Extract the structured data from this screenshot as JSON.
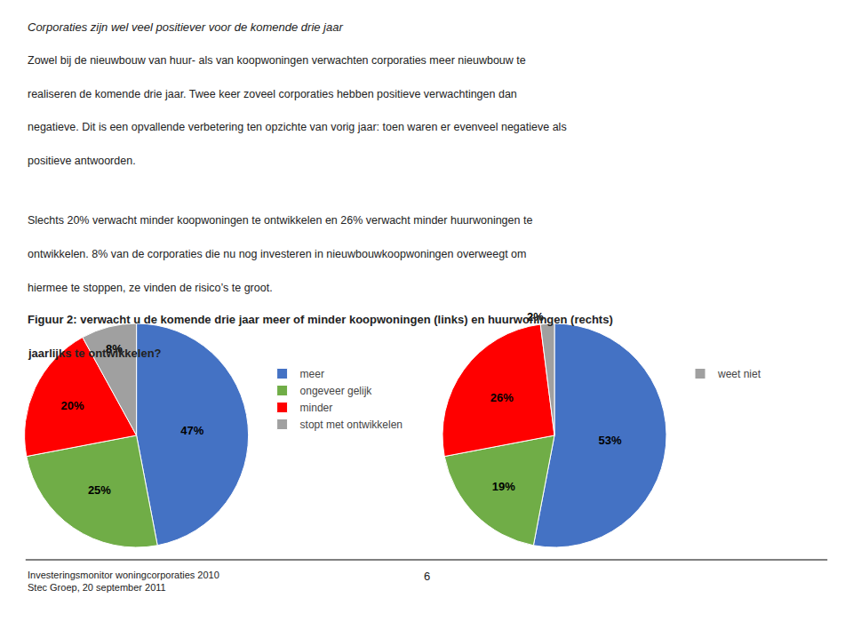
{
  "title": "Corporaties zijn wel veel positiever voor de komende drie jaar",
  "annotations": [
    [
      "Zowel bij de nieuwbouw van huur- als van koopwoningen verwachten corporaties meer nieuwbouw te",
      "realiseren de komende drie jaar. Twee keer zoveel corporaties hebben positieve verwachtingen dan",
      "negatieve. Dit is een opvallende verbetering ten opzichte van vorig jaar: toen waren er evenveel negatieve als",
      "positieve antwoorden."
    ],
    [
      "Slechts 20% verwacht minder koopwoningen te ontwikkelen en 26% verwacht minder huurwoningen te",
      "ontwikkelen. 8% van de corporaties die nu nog investeren in nieuwbouwkoopwoningen overweegt om",
      "hiermee te stoppen, ze vinden de risico’s te groot."
    ]
  ],
  "subtitle": [
    "Figuur 2: verwacht u de komende drie jaar meer of minder koopwoningen (links) en huurwoningen (rechts)",
    "jaarlijks te ontwikkelen?"
  ],
  "footer": [
    "Investeringsmonitor woningcorporaties 2010\nStec Groep, 20 september 2011",
    "6"
  ],
  "chart_data": [
    {
      "type": "pie",
      "categories": [
        "meer",
        "ongeveer gelijk",
        "minder",
        "stopt met ontwikkelen"
      ],
      "values": [
        47,
        25,
        20,
        8
      ],
      "value_labels": [
        "47%",
        "25%",
        "20%",
        "8%"
      ],
      "colors": [
        "#4472C4",
        "#70AD47",
        "#FF0000",
        "#A0A0A0"
      ],
      "data_labels": true,
      "legend": "right"
    },
    {
      "type": "pie",
      "categories": [
        "meer",
        "ongeveer gelijk",
        "minder",
        "weet niet"
      ],
      "values": [
        53,
        19,
        26,
        2
      ],
      "value_labels": [
        "53%",
        "19%",
        "26%",
        "2%"
      ],
      "colors": [
        "#4472C4",
        "#70AD47",
        "#FF0000",
        "#A0A0A0"
      ],
      "data_labels": true,
      "legend": "right"
    }
  ]
}
